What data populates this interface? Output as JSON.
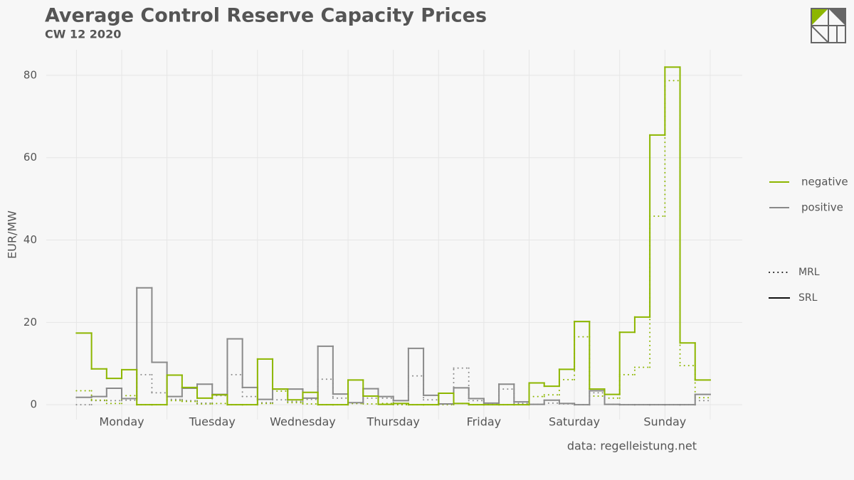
{
  "chart_data": {
    "type": "step",
    "title": "Average Control Reserve Capacity Prices",
    "subtitle": "CW 12 2020",
    "ylabel": "EUR/MW",
    "caption": "data: regelleistung.net",
    "x": [
      0,
      4,
      8,
      12,
      16,
      20,
      24,
      28,
      32,
      36,
      40,
      44,
      48,
      52,
      56,
      60,
      64,
      68,
      72,
      76,
      80,
      84,
      88,
      92,
      96,
      100,
      104,
      108,
      112,
      116,
      120,
      124,
      128,
      132,
      136,
      140,
      144,
      148,
      152,
      156,
      160,
      164
    ],
    "xlim": [
      -8,
      176.5
    ],
    "xticks": [
      {
        "value": 12,
        "label": "Monday"
      },
      {
        "value": 36,
        "label": "Tuesday"
      },
      {
        "value": 60,
        "label": "Wednesday"
      },
      {
        "value": 84,
        "label": "Thursday"
      },
      {
        "value": 108,
        "label": "Friday"
      },
      {
        "value": 132,
        "label": "Saturday"
      },
      {
        "value": 156,
        "label": "Sunday"
      }
    ],
    "xminor": [
      0,
      24,
      48,
      72,
      96,
      120,
      144,
      168
    ],
    "ylim": [
      -3.6,
      86.2
    ],
    "yticks": [
      0,
      20,
      40,
      60,
      80
    ],
    "grid": true,
    "colors": [
      {
        "label": "negative",
        "color": "#8db600"
      },
      {
        "label": "positive",
        "color": "#8a8a8a"
      }
    ],
    "linetypes": [
      {
        "label": "MRL",
        "dash": "dotted"
      },
      {
        "label": "SRL",
        "dash": "solid"
      }
    ],
    "series": [
      {
        "color_group": 1,
        "linetype_group": 0,
        "values": [
          0,
          1.0,
          1.0,
          1.1,
          7.3,
          2.9,
          1.3,
          1.0,
          0.4,
          2.2,
          7.3,
          2.0,
          0.5,
          1.2,
          0.8,
          1.3,
          6.2,
          1.6,
          0.3,
          1.6,
          1.6,
          0.2,
          7.0,
          1.2,
          0.1,
          8.9,
          1.0,
          0.1,
          3.8,
          0.3,
          0.1,
          0.4,
          0.2,
          0,
          2.9,
          0.1,
          0,
          0,
          0,
          0,
          0,
          1.0
        ]
      },
      {
        "color_group": 0,
        "linetype_group": 0,
        "values": [
          3.4,
          1.1,
          0.3,
          2.2,
          0,
          0,
          1.0,
          0.8,
          0.2,
          0.3,
          0,
          0,
          0.3,
          3.3,
          0.5,
          0.2,
          0,
          0,
          0.3,
          0.2,
          0.3,
          0,
          0,
          0,
          0,
          0.3,
          0,
          0,
          0,
          0,
          2.0,
          2.4,
          6.1,
          16.5,
          2.1,
          1.6,
          7.3,
          9.1,
          45.8,
          78.7,
          9.5,
          1.7
        ]
      },
      {
        "color_group": 1,
        "linetype_group": 1,
        "values": [
          1.8,
          2.0,
          4.0,
          1.5,
          28.4,
          10.3,
          2.0,
          4.0,
          5.0,
          2.5,
          16.0,
          4.2,
          1.3,
          3.8,
          3.8,
          1.6,
          14.2,
          2.6,
          0.5,
          3.9,
          2.0,
          1.0,
          13.7,
          2.3,
          0.2,
          4.1,
          1.5,
          0.4,
          5.0,
          0.7,
          0.1,
          1.1,
          0.3,
          0,
          3.4,
          0.1,
          0,
          0,
          0,
          0,
          0,
          2.5
        ]
      },
      {
        "color_group": 0,
        "linetype_group": 1,
        "values": [
          17.4,
          8.7,
          6.4,
          8.5,
          0,
          0,
          7.2,
          4.2,
          1.6,
          2.4,
          0,
          0,
          11.1,
          3.8,
          1.2,
          3.0,
          0,
          0,
          6.0,
          2.1,
          0.1,
          0.3,
          0,
          0,
          2.8,
          0.3,
          0,
          0,
          0,
          0,
          5.3,
          4.5,
          8.6,
          20.2,
          3.8,
          2.5,
          17.6,
          21.3,
          65.5,
          82.0,
          15.0,
          6.0
        ]
      }
    ]
  }
}
